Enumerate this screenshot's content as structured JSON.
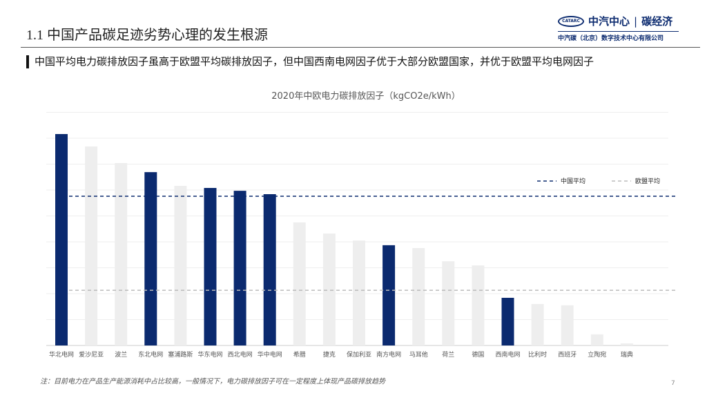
{
  "header": {
    "title": "1.1 中国产品碳足迹劣势心理的发生根源",
    "subtitle": "中国平均电力碳排放因子虽高于欧盟平均碳排放因子，但中国西南电网因子优于大部分欧盟国家，并优于欧盟平均电网因子"
  },
  "logo": {
    "badge": "CATARC",
    "name": "中汽中心",
    "brand": "碳经济",
    "org": "中汽碳（北京）数字技术中心有限公司"
  },
  "chart_data": {
    "type": "bar",
    "title": "2020年中欧电力碳排放因子（kgCO2e/kWh）",
    "categories": [
      "华北电网",
      "爱沙尼亚",
      "波兰",
      "东北电网",
      "塞浦路斯",
      "华东电网",
      "西北电网",
      "华中电网",
      "希腊",
      "捷克",
      "保加利亚",
      "南方电网",
      "马耳他",
      "荷兰",
      "德国",
      "西南电网",
      "比利时",
      "西班牙",
      "立陶宛",
      "瑞典"
    ],
    "values": [
      0.816,
      0.768,
      0.704,
      0.669,
      0.616,
      0.608,
      0.597,
      0.584,
      0.475,
      0.432,
      0.405,
      0.387,
      0.376,
      0.325,
      0.309,
      0.184,
      0.16,
      0.155,
      0.043,
      0.008
    ],
    "china": [
      true,
      false,
      false,
      true,
      false,
      true,
      true,
      true,
      false,
      false,
      false,
      true,
      false,
      false,
      false,
      true,
      false,
      false,
      false,
      false
    ],
    "reference_lines": [
      {
        "name": "中国平均",
        "value": 0.576,
        "color": "#0b2a6f"
      },
      {
        "name": "欧盟平均",
        "value": 0.213,
        "color": "#bbbbbb"
      }
    ],
    "ylim": [
      0,
      0.9
    ],
    "grid": true,
    "legend": "top-right",
    "colors": {
      "china": "#0b2a6f",
      "eu": "#eeeeee"
    }
  },
  "footer": {
    "note": "注：目前电力在产品生产能源消耗中占比较高，一般情况下，电力碳排放因子可在一定程度上体现产品碳排放趋势",
    "page": "7"
  }
}
